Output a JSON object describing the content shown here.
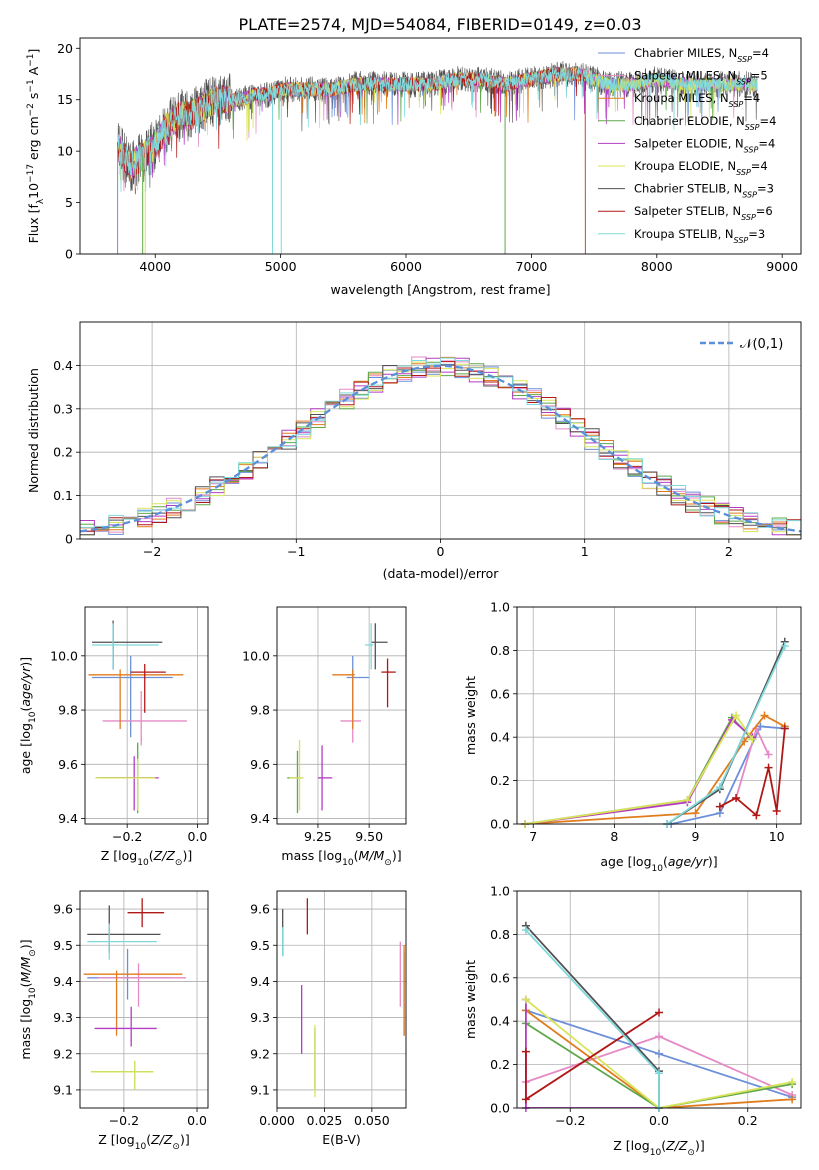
{
  "figure": {
    "title": "PLATE=2574, MJD=54084, FIBERID=0149, z=0.03"
  },
  "series_styles": [
    {
      "name": "Chabrier MILES",
      "nssp": "4",
      "color": "#6b8fd9"
    },
    {
      "name": "Salpeter MILES",
      "nssp": "5",
      "color": "#e58ac5"
    },
    {
      "name": "Kroupa MILES",
      "nssp": "4",
      "color": "#e07b1e"
    },
    {
      "name": "Chabrier ELODIE",
      "nssp": "4",
      "color": "#5ea84a"
    },
    {
      "name": "Salpeter ELODIE",
      "nssp": "4",
      "color": "#b43cc4"
    },
    {
      "name": "Kroupa ELODIE",
      "nssp": "4",
      "color": "#d9e35a"
    },
    {
      "name": "Chabrier STELIB",
      "nssp": "3",
      "color": "#505050"
    },
    {
      "name": "Salpeter STELIB",
      "nssp": "6",
      "color": "#b01818"
    },
    {
      "name": "Kroupa STELIB",
      "nssp": "3",
      "color": "#7fd8dc"
    }
  ],
  "chart_data": [
    {
      "id": "spectrum",
      "type": "line",
      "xlabel": "wavelength [Angstrom, rest frame]",
      "ylabel": "Flux [f_λ 10^-17 erg cm^-2 s^-1 A^-1]",
      "xlim": [
        3400,
        9150
      ],
      "ylim": [
        0,
        21
      ],
      "xticks": [
        4000,
        5000,
        6000,
        7000,
        8000,
        9000
      ],
      "yticks": [
        0,
        5,
        10,
        15,
        20
      ],
      "legend_position": "right",
      "envelope": {
        "x": [
          3700,
          3800,
          3900,
          4000,
          4100,
          4200,
          4300,
          4400,
          4500,
          4600,
          4700,
          4800,
          4900,
          5000,
          5200,
          5400,
          5600,
          5800,
          6000,
          6200,
          6400,
          6600,
          6800,
          7000,
          7200,
          7400,
          7600,
          7800,
          8000,
          8200,
          8400,
          8600,
          8800
        ],
        "y": [
          10.5,
          8.5,
          9.5,
          10.5,
          12.5,
          13.5,
          13.5,
          14.5,
          15,
          15,
          15,
          15.5,
          15.5,
          16,
          16,
          16,
          16.5,
          16.5,
          16.5,
          16.5,
          17,
          17,
          16.5,
          17,
          17.5,
          17.5,
          16.5,
          16.5,
          17,
          16.5,
          16.5,
          16.5,
          16.5
        ]
      },
      "data_min_x": 3700,
      "data_max_x": 8800
    },
    {
      "id": "residuals",
      "type": "bar",
      "xlabel": "(data-model)/error",
      "ylabel": "Normed distribution",
      "xlim": [
        -2.5,
        2.5
      ],
      "ylim": [
        0,
        0.5
      ],
      "xticks": [
        -2,
        -1,
        0,
        1,
        2
      ],
      "xticklabels": [
        "−2",
        "−1",
        "0",
        "1",
        "2"
      ],
      "yticks": [
        0,
        0.1,
        0.2,
        0.3,
        0.4
      ],
      "legend": "𝒩(0,1)",
      "legend_position": "upper right",
      "bin_width": 0.1,
      "grid": true
    },
    {
      "id": "z-age",
      "type": "scatter",
      "xlabel": "Z [log10(Z/Z⊙)]",
      "ylabel": "age [log10(age/yr)]",
      "xlim": [
        -0.32,
        0.03
      ],
      "ylim": [
        9.38,
        10.18
      ],
      "xticks": [
        -0.2,
        0
      ],
      "xticklabels": [
        "−0.2",
        "0.0"
      ],
      "yticks": [
        9.4,
        9.6,
        9.8,
        10.0
      ],
      "yticklabels": [
        "9.4",
        "9.6",
        "9.8",
        "10.0"
      ],
      "grid": true,
      "points": [
        {
          "x": -0.19,
          "y": 9.92,
          "xerr": [
            0.11,
            0.12
          ],
          "yerr": [
            0.22,
            0.08
          ]
        },
        {
          "x": -0.16,
          "y": 9.76,
          "xerr": [
            0.11,
            0.13
          ],
          "yerr": [
            0.09,
            0.11
          ]
        },
        {
          "x": -0.22,
          "y": 9.93,
          "xerr": [
            0.09,
            0.18
          ],
          "yerr": [
            0.2,
            0.02
          ]
        },
        {
          "x": -0.17,
          "y": 9.55,
          "xerr": [
            0.12,
            0.05
          ],
          "yerr": [
            0.13,
            0.13
          ]
        },
        {
          "x": -0.18,
          "y": 9.55,
          "xerr": [
            0.1,
            0.07
          ],
          "yerr": [
            0.12,
            0.08
          ]
        },
        {
          "x": -0.17,
          "y": 9.55,
          "xerr": [
            0.12,
            0.05
          ],
          "yerr": [
            0.12,
            0.07
          ]
        },
        {
          "x": -0.24,
          "y": 10.05,
          "xerr": [
            0.06,
            0.14
          ],
          "yerr": [
            0.1,
            0.08
          ]
        },
        {
          "x": -0.15,
          "y": 9.94,
          "xerr": [
            0.04,
            0.06
          ],
          "yerr": [
            0.15,
            0.03
          ]
        },
        {
          "x": -0.24,
          "y": 10.04,
          "xerr": [
            0.06,
            0.13
          ],
          "yerr": [
            0.09,
            0.08
          ]
        }
      ]
    },
    {
      "id": "mass-age",
      "type": "scatter",
      "xlabel": "mass [log10(M/M⊙)]",
      "ylabel": "",
      "xlim": [
        9.05,
        9.68
      ],
      "ylim": [
        9.38,
        10.18
      ],
      "xticks": [
        9.25,
        9.5
      ],
      "xticklabels": [
        "9.25",
        "9.50"
      ],
      "yticks": [
        9.4,
        9.6,
        9.8,
        10.0
      ],
      "yticklabels": [
        "9.4",
        "9.6",
        "9.8",
        "10.0"
      ],
      "grid": true,
      "points": [
        {
          "x": 9.42,
          "y": 9.92,
          "xerr": [
            0.03,
            0.08
          ],
          "yerr": [
            0.1,
            0.08
          ]
        },
        {
          "x": 9.42,
          "y": 9.76,
          "xerr": [
            0.06,
            0.04
          ],
          "yerr": [
            0.08,
            0.11
          ]
        },
        {
          "x": 9.42,
          "y": 9.93,
          "xerr": [
            0.1,
            0.01
          ],
          "yerr": [
            0.2,
            0.02
          ]
        },
        {
          "x": 9.15,
          "y": 9.55,
          "xerr": [
            0.05,
            0.02
          ],
          "yerr": [
            0.13,
            0.1
          ]
        },
        {
          "x": 9.27,
          "y": 9.55,
          "xerr": [
            0.02,
            0.05
          ],
          "yerr": [
            0.12,
            0.12
          ]
        },
        {
          "x": 9.16,
          "y": 9.55,
          "xerr": [
            0.05,
            0.02
          ],
          "yerr": [
            0.12,
            0.14
          ]
        },
        {
          "x": 9.53,
          "y": 10.05,
          "xerr": [
            0.02,
            0.06
          ],
          "yerr": [
            0.1,
            0.07
          ]
        },
        {
          "x": 9.59,
          "y": 9.94,
          "xerr": [
            0.03,
            0.04
          ],
          "yerr": [
            0.13,
            0.05
          ]
        },
        {
          "x": 9.51,
          "y": 10.04,
          "xerr": [
            0.03,
            0.01
          ],
          "yerr": [
            0.09,
            0.08
          ]
        }
      ]
    },
    {
      "id": "age-weight",
      "type": "line",
      "xlabel": "age [log10(age/yr)]",
      "ylabel": "mass weight",
      "xlim": [
        6.8,
        10.3
      ],
      "ylim": [
        0,
        1
      ],
      "xticks": [
        7,
        8,
        9,
        10
      ],
      "yticks": [
        0,
        0.2,
        0.4,
        0.6,
        0.8,
        1.0
      ],
      "yticklabels": [
        "0.0",
        "0.2",
        "0.4",
        "0.6",
        "0.8",
        "1.0"
      ],
      "grid": true,
      "series": [
        {
          "x": [
            8.7,
            9.3,
            9.8,
            10.1
          ],
          "y": [
            0.0,
            0.05,
            0.45,
            0.44
          ]
        },
        {
          "x": [
            9.5,
            9.75,
            9.9
          ],
          "y": [
            0.12,
            0.44,
            0.32
          ]
        },
        {
          "x": [
            6.9,
            9.0,
            9.6,
            9.85,
            10.1
          ],
          "y": [
            0.0,
            0.05,
            0.38,
            0.5,
            0.45
          ]
        },
        {
          "x": [
            6.9,
            8.9,
            9.45,
            9.7
          ],
          "y": [
            0.0,
            0.11,
            0.49,
            0.39
          ]
        },
        {
          "x": [
            6.9,
            8.9,
            9.45,
            9.7
          ],
          "y": [
            0.0,
            0.1,
            0.48,
            0.4
          ]
        },
        {
          "x": [
            6.9,
            8.9,
            9.5,
            9.7
          ],
          "y": [
            0.0,
            0.11,
            0.5,
            0.39
          ]
        },
        {
          "x": [
            8.65,
            9.3,
            10.1
          ],
          "y": [
            0.0,
            0.16,
            0.84
          ]
        },
        {
          "x": [
            9.3,
            9.5,
            9.75,
            9.9,
            10.0,
            10.1
          ],
          "y": [
            0.08,
            0.12,
            0.04,
            0.26,
            0.06,
            0.44
          ]
        },
        {
          "x": [
            8.65,
            9.3,
            10.1
          ],
          "y": [
            0.0,
            0.17,
            0.82
          ]
        }
      ]
    },
    {
      "id": "z-mass",
      "type": "scatter",
      "xlabel": "Z [log10(Z/Z⊙)]",
      "ylabel": "mass [log10(M/M⊙)]",
      "xlim": [
        -0.32,
        0.03
      ],
      "ylim": [
        9.05,
        9.65
      ],
      "xticks": [
        -0.2,
        0
      ],
      "xticklabels": [
        "−0.2",
        "0.0"
      ],
      "yticks": [
        9.1,
        9.2,
        9.3,
        9.4,
        9.5,
        9.6
      ],
      "yticklabels": [
        "9.1",
        "9.2",
        "9.3",
        "9.4",
        "9.5",
        "9.6"
      ],
      "grid": true,
      "points": [
        {
          "x": -0.19,
          "y": 9.41,
          "xerr": [
            0.11,
            0.12
          ],
          "yerr": [
            0.06,
            0.08
          ]
        },
        {
          "x": -0.16,
          "y": 9.41,
          "xerr": [
            0.11,
            0.13
          ],
          "yerr": [
            0.08,
            0.04
          ]
        },
        {
          "x": -0.22,
          "y": 9.42,
          "xerr": [
            0.09,
            0.18
          ],
          "yerr": [
            0.17,
            0.01
          ]
        },
        {
          "x": -0.17,
          "y": 9.15,
          "xerr": [
            0.12,
            0.05
          ],
          "yerr": [
            0.05,
            0.03
          ]
        },
        {
          "x": -0.18,
          "y": 9.27,
          "xerr": [
            0.1,
            0.07
          ],
          "yerr": [
            0.05,
            0.06
          ]
        },
        {
          "x": -0.17,
          "y": 9.15,
          "xerr": [
            0.12,
            0.05
          ],
          "yerr": [
            0.05,
            0.03
          ]
        },
        {
          "x": -0.24,
          "y": 9.53,
          "xerr": [
            0.06,
            0.14
          ],
          "yerr": [
            0.05,
            0.08
          ]
        },
        {
          "x": -0.15,
          "y": 9.59,
          "xerr": [
            0.04,
            0.06
          ],
          "yerr": [
            0.04,
            0.04
          ]
        },
        {
          "x": -0.24,
          "y": 9.51,
          "xerr": [
            0.06,
            0.13
          ],
          "yerr": [
            0.05,
            0.05
          ]
        }
      ]
    },
    {
      "id": "ebv-mass",
      "type": "scatter",
      "xlabel": "E(B-V)",
      "ylabel": "",
      "xlim": [
        0,
        0.068
      ],
      "ylim": [
        9.05,
        9.65
      ],
      "xticks": [
        0,
        0.025,
        0.05
      ],
      "xticklabels": [
        "0.000",
        "0.025",
        "0.050"
      ],
      "yticks": [
        9.1,
        9.2,
        9.3,
        9.4,
        9.5,
        9.6
      ],
      "yticklabels": [
        "9.1",
        "9.2",
        "9.3",
        "9.4",
        "9.5",
        "9.6"
      ],
      "grid": true,
      "points": [
        {
          "x": 0.067,
          "y": 9.4,
          "yerr": [
            0.15,
            0.08
          ]
        },
        {
          "x": 0.065,
          "y": 9.4,
          "yerr": [
            0.07,
            0.11
          ]
        },
        {
          "x": 0.067,
          "y": 9.4,
          "yerr": [
            0.15,
            0.1
          ]
        },
        {
          "x": 0.02,
          "y": 9.18,
          "yerr": [
            0.08,
            0.09
          ]
        },
        {
          "x": 0.013,
          "y": 9.3,
          "yerr": [
            0.1,
            0.09
          ]
        },
        {
          "x": 0.02,
          "y": 9.18,
          "yerr": [
            0.1,
            0.1
          ]
        },
        {
          "x": 0.003,
          "y": 9.53,
          "yerr": [
            0.06,
            0.07
          ]
        },
        {
          "x": 0.016,
          "y": 9.58,
          "yerr": [
            0.05,
            0.05
          ]
        },
        {
          "x": 0.003,
          "y": 9.51,
          "yerr": [
            0.04,
            0.04
          ]
        }
      ]
    },
    {
      "id": "z-weight",
      "type": "line",
      "xlabel": "Z [log10(Z/Z⊙)]",
      "ylabel": "mass weight",
      "xlim": [
        -0.32,
        0.32
      ],
      "ylim": [
        0,
        1
      ],
      "xticks": [
        -0.2,
        0,
        0.2
      ],
      "xticklabels": [
        "−0.2",
        "0.0",
        "0.2"
      ],
      "yticks": [
        0,
        0.2,
        0.4,
        0.6,
        0.8,
        1.0
      ],
      "yticklabels": [
        "0.0",
        "0.2",
        "0.4",
        "0.6",
        "0.8",
        "1.0"
      ],
      "grid": true,
      "series": [
        {
          "x": [
            -0.3,
            0.0,
            0.3
          ],
          "y": [
            0.45,
            0.25,
            0.05
          ]
        },
        {
          "x": [
            -0.3,
            0.0,
            0.3
          ],
          "y": [
            0.12,
            0.33,
            0.06
          ]
        },
        {
          "x": [
            -0.3,
            0.0,
            0.3
          ],
          "y": [
            0.45,
            0.0,
            0.04
          ]
        },
        {
          "x": [
            -0.3,
            0.0,
            0.3
          ],
          "y": [
            0.39,
            0.0,
            0.11
          ]
        },
        {
          "x": [
            -0.3,
            -0.3,
            0.0
          ],
          "y": [
            0.5,
            0.0,
            0.0
          ]
        },
        {
          "x": [
            -0.3,
            0.0,
            0.3
          ],
          "y": [
            0.5,
            0.0,
            0.12
          ]
        },
        {
          "x": [
            -0.3,
            0.0,
            0.0
          ],
          "y": [
            0.84,
            0.17,
            0.0
          ]
        },
        {
          "x": [
            -0.3,
            -0.3,
            0.0
          ],
          "y": [
            0.26,
            0.04,
            0.44
          ]
        },
        {
          "x": [
            -0.3,
            0.0,
            0.0
          ],
          "y": [
            0.82,
            0.16,
            0.0
          ]
        }
      ]
    }
  ]
}
